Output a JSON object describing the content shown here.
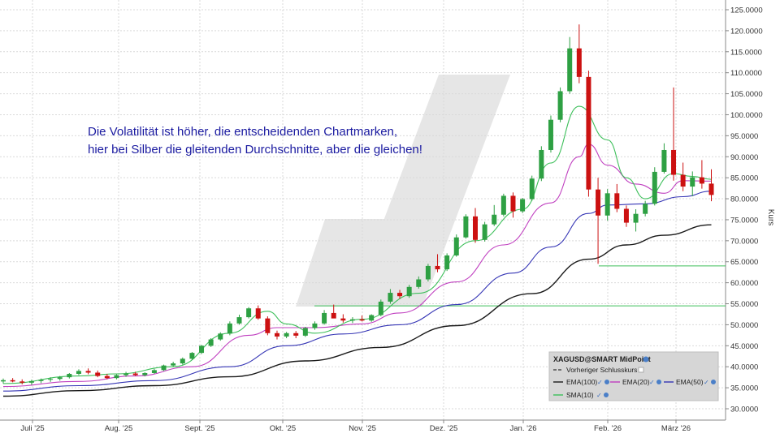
{
  "annotation": {
    "line1": "Die Volatilität ist höher, die entscheidenden Chartmarken,",
    "line2": "hier bei Silber die gleitenden Durchschnitte, aber die gleichen!"
  },
  "legend": {
    "title": "XAGUSD@SMART MidPoint",
    "prev_close": "Vorheriger Schlusskurs",
    "ema100": "EMA(100)",
    "ema20": "EMA(20)",
    "ema50": "EMA(50)",
    "sma10": "SMA(10)"
  },
  "colors": {
    "up": "#2ea043",
    "down": "#cc1111",
    "ema100": "#1a1a1a",
    "ema20": "#c040c0",
    "ema50": "#3535b5",
    "sma10": "#3dbf5a",
    "hline": "#3dbf5a",
    "annotation": "#1a1aa0"
  },
  "chart_data": {
    "type": "candlestick",
    "ylabel": "Kurs",
    "ylim": [
      28,
      125
    ],
    "y_ticks": [
      "30.0000",
      "35.0000",
      "40.0000",
      "45.0000",
      "50.0000",
      "55.0000",
      "60.0000",
      "65.0000",
      "70.0000",
      "75.0000",
      "80.0000",
      "85.0000",
      "90.0000",
      "95.0000",
      "100.0000",
      "105.0000",
      "110.0000",
      "115.0000",
      "120.0000",
      "125.0000"
    ],
    "x_ticks": [
      "Juli '25",
      "Aug. '25",
      "Sept. '25",
      "Okt. '25",
      "Nov. '25",
      "Dez. '25",
      "Jan. '26",
      "Feb. '26",
      "März '26"
    ],
    "horizontal_lines": [
      {
        "value": 54.5,
        "from": "Okt. '25"
      },
      {
        "value": 64.0,
        "from": "Feb. '26"
      }
    ],
    "candles": [
      [
        36.5,
        37.2,
        36.0,
        36.8
      ],
      [
        36.8,
        37.3,
        36.3,
        36.5
      ],
      [
        36.5,
        37.0,
        35.8,
        36.2
      ],
      [
        36.2,
        36.9,
        35.7,
        36.6
      ],
      [
        36.6,
        37.2,
        36.1,
        36.9
      ],
      [
        36.9,
        37.5,
        36.4,
        37.1
      ],
      [
        37.1,
        37.8,
        36.7,
        37.5
      ],
      [
        37.5,
        38.5,
        37.2,
        38.3
      ],
      [
        38.3,
        39.4,
        38.0,
        39.0
      ],
      [
        39.0,
        39.6,
        38.2,
        38.6
      ],
      [
        38.6,
        39.1,
        37.5,
        37.8
      ],
      [
        37.8,
        38.3,
        37.0,
        37.3
      ],
      [
        37.3,
        38.2,
        37.0,
        38.0
      ],
      [
        38.0,
        38.8,
        37.6,
        38.4
      ],
      [
        38.4,
        38.8,
        37.8,
        38.0
      ],
      [
        38.0,
        38.7,
        37.7,
        38.5
      ],
      [
        38.5,
        39.5,
        38.3,
        39.2
      ],
      [
        39.2,
        40.5,
        39.0,
        40.3
      ],
      [
        40.3,
        41.2,
        40.0,
        40.8
      ],
      [
        40.8,
        42.2,
        40.5,
        41.9
      ],
      [
        41.9,
        43.5,
        41.6,
        43.3
      ],
      [
        43.3,
        45.2,
        43.0,
        45.0
      ],
      [
        45.0,
        46.8,
        44.7,
        46.5
      ],
      [
        46.5,
        48.2,
        46.2,
        47.9
      ],
      [
        47.9,
        50.8,
        47.5,
        50.3
      ],
      [
        50.3,
        52.4,
        50.0,
        51.8
      ],
      [
        51.8,
        54.2,
        51.5,
        53.9
      ],
      [
        53.9,
        54.6,
        51.2,
        51.5
      ],
      [
        51.5,
        52.0,
        47.5,
        48.0
      ],
      [
        48.0,
        48.6,
        46.5,
        47.2
      ],
      [
        47.2,
        48.3,
        46.8,
        48.0
      ],
      [
        48.0,
        48.5,
        46.8,
        47.4
      ],
      [
        47.4,
        49.5,
        47.1,
        49.2
      ],
      [
        49.2,
        50.8,
        48.8,
        50.3
      ],
      [
        50.3,
        53.5,
        50.0,
        52.8
      ],
      [
        52.8,
        54.8,
        52.0,
        51.5
      ],
      [
        51.5,
        52.5,
        50.5,
        51.0
      ],
      [
        51.0,
        51.8,
        50.4,
        51.3
      ],
      [
        51.3,
        52.2,
        50.8,
        51.0
      ],
      [
        51.0,
        52.5,
        50.7,
        52.3
      ],
      [
        52.3,
        56.0,
        52.0,
        55.5
      ],
      [
        55.5,
        58.5,
        55.0,
        57.6
      ],
      [
        57.6,
        58.3,
        56.2,
        56.8
      ],
      [
        56.8,
        59.5,
        56.4,
        59.0
      ],
      [
        59.0,
        61.5,
        58.6,
        60.8
      ],
      [
        60.8,
        64.5,
        60.3,
        64.0
      ],
      [
        64.0,
        66.8,
        62.5,
        63.2
      ],
      [
        63.2,
        67.0,
        62.8,
        66.5
      ],
      [
        66.5,
        71.5,
        66.2,
        70.8
      ],
      [
        70.8,
        76.3,
        70.5,
        75.8
      ],
      [
        75.8,
        77.8,
        69.5,
        70.2
      ],
      [
        70.2,
        74.5,
        69.8,
        73.9
      ],
      [
        73.9,
        78.5,
        73.5,
        76.2
      ],
      [
        76.2,
        81.2,
        75.8,
        80.7
      ],
      [
        80.7,
        81.5,
        75.5,
        77.0
      ],
      [
        77.0,
        80.2,
        76.6,
        79.9
      ],
      [
        79.9,
        85.5,
        79.5,
        84.8
      ],
      [
        84.8,
        92.5,
        84.2,
        91.6
      ],
      [
        91.6,
        99.8,
        91.0,
        98.8
      ],
      [
        98.8,
        106.5,
        98.2,
        105.6
      ],
      [
        105.6,
        118.5,
        105.0,
        115.8
      ],
      [
        115.8,
        121.5,
        107.5,
        109.0
      ],
      [
        109.0,
        110.5,
        80.5,
        82.2
      ],
      [
        82.2,
        85.0,
        64.5,
        76.0
      ],
      [
        76.0,
        82.3,
        74.8,
        81.3
      ],
      [
        81.3,
        83.5,
        76.8,
        77.6
      ],
      [
        77.6,
        78.4,
        73.3,
        74.3
      ],
      [
        74.3,
        77.5,
        72.2,
        76.4
      ],
      [
        76.4,
        79.5,
        75.8,
        78.8
      ],
      [
        78.8,
        87.5,
        78.4,
        86.4
      ],
      [
        86.4,
        93.2,
        86.0,
        91.6
      ],
      [
        91.6,
        106.5,
        84.3,
        85.7
      ],
      [
        85.7,
        88.6,
        81.8,
        82.9
      ],
      [
        82.9,
        86.5,
        80.6,
        85.1
      ],
      [
        85.1,
        89.2,
        82.4,
        83.6
      ],
      [
        83.6,
        87.0,
        79.4,
        80.9
      ]
    ],
    "series": [
      {
        "name": "EMA(100)",
        "points": [
          [
            0,
            33.0
          ],
          [
            8,
            34.3
          ],
          [
            16,
            35.5
          ],
          [
            24,
            37.6
          ],
          [
            32,
            41.4
          ],
          [
            40,
            44.6
          ],
          [
            48,
            49.8
          ],
          [
            56,
            57.4
          ],
          [
            62,
            65.6
          ],
          [
            66,
            69.0
          ],
          [
            70,
            71.3
          ],
          [
            75,
            73.8
          ]
        ]
      },
      {
        "name": "EMA(20)",
        "points": [
          [
            0,
            35.3
          ],
          [
            8,
            36.5
          ],
          [
            14,
            37.8
          ],
          [
            20,
            40.0
          ],
          [
            26,
            47.5
          ],
          [
            29,
            49.3
          ],
          [
            33,
            49.3
          ],
          [
            38,
            50.2
          ],
          [
            42,
            52.8
          ],
          [
            48,
            60.2
          ],
          [
            53,
            69.0
          ],
          [
            58,
            79.0
          ],
          [
            61,
            90.0
          ],
          [
            62,
            93.0
          ],
          [
            64,
            88.0
          ],
          [
            67,
            83.5
          ],
          [
            70,
            81.3
          ],
          [
            72,
            84.3
          ],
          [
            75,
            84.2
          ]
        ]
      },
      {
        "name": "EMA(50)",
        "points": [
          [
            0,
            34.2
          ],
          [
            8,
            35.5
          ],
          [
            16,
            36.7
          ],
          [
            24,
            40.0
          ],
          [
            30,
            45.0
          ],
          [
            36,
            47.8
          ],
          [
            42,
            50.0
          ],
          [
            48,
            54.8
          ],
          [
            54,
            62.3
          ],
          [
            58,
            68.5
          ],
          [
            62,
            76.5
          ],
          [
            64,
            78.5
          ],
          [
            68,
            78.8
          ],
          [
            72,
            80.5
          ],
          [
            75,
            81.8
          ]
        ]
      },
      {
        "name": "SMA(10)",
        "points": [
          [
            0,
            36.0
          ],
          [
            8,
            37.8
          ],
          [
            12,
            38.3
          ],
          [
            18,
            40.0
          ],
          [
            24,
            48.0
          ],
          [
            28,
            53.2
          ],
          [
            30,
            50.2
          ],
          [
            33,
            48.0
          ],
          [
            38,
            51.3
          ],
          [
            44,
            57.5
          ],
          [
            50,
            70.0
          ],
          [
            55,
            77.5
          ],
          [
            58,
            88.5
          ],
          [
            61,
            102.0
          ],
          [
            64,
            94.0
          ],
          [
            66,
            85.0
          ],
          [
            68,
            80.0
          ],
          [
            71,
            86.0
          ],
          [
            73,
            85.3
          ],
          [
            75,
            84.6
          ]
        ]
      }
    ]
  }
}
